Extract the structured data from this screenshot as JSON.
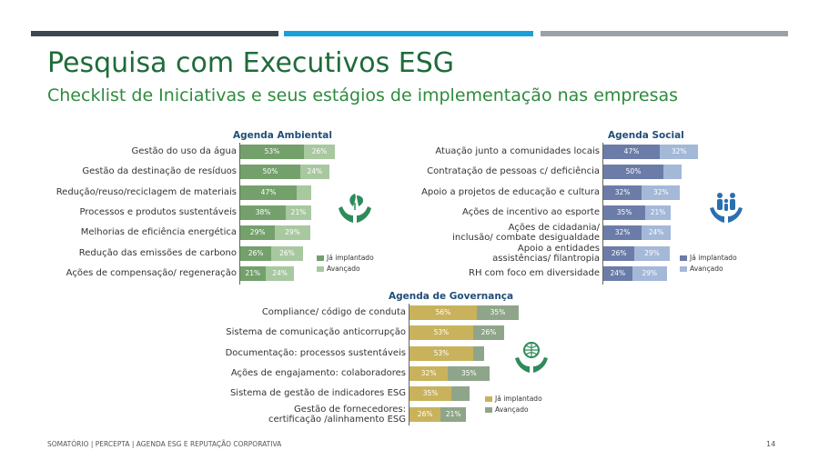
{
  "title": "Pesquisa com Executivos ESG",
  "subtitle": "Checklist de Iniciativas e seus estágios de implementação nas empresas",
  "footer": "SOMATÓRIO | PERCEPTA | AGENDA ESG E REPUTAÇÃO CORPORATIVA",
  "page_number": "14",
  "colors": {
    "bar1": "#3d4750",
    "bar2": "#1aa0d8",
    "bar3": "#9aa2a7",
    "env_impl": "#74a06c",
    "env_adv": "#a8c8a0",
    "soc_impl": "#6c7ca8",
    "soc_adv": "#a4b8d8",
    "gov_impl": "#c9b25c",
    "gov_adv": "#8fa58a",
    "icon_green": "#2e8b5a",
    "icon_blue": "#2a6fb0"
  },
  "icons": [
    "leaf-hands-icon",
    "family-hands-icon",
    "globe-hands-icon"
  ],
  "chart_data": [
    {
      "type": "bar",
      "title": "Agenda Ambiental",
      "categories": [
        "Gestão do uso da água",
        "Gestão da destinação de resíduos",
        "Redução/reuso/reciclagem de materiais",
        "Processos e produtos sustentáveis",
        "Melhorias de eficiência energética",
        "Redução das emissões de carbono",
        "Ações de compensação/ regeneração"
      ],
      "series": [
        {
          "name": "Já implantado",
          "values": [
            53,
            50,
            47,
            38,
            29,
            26,
            21
          ],
          "labels": [
            "53%",
            "50%",
            "47%",
            "38%",
            "29%",
            "26%",
            "21%"
          ]
        },
        {
          "name": "Avançado",
          "values": [
            26,
            24,
            12,
            21,
            29,
            26,
            24
          ],
          "labels": [
            "26%",
            "24%",
            "",
            "21%",
            "29%",
            "26%",
            "24%"
          ]
        }
      ],
      "stacked": true,
      "orientation": "horizontal",
      "legend": "right"
    },
    {
      "type": "bar",
      "title": "Agenda Social",
      "categories": [
        "Atuação junto a comunidades locais",
        "Contratação de pessoas c/ deficiência",
        "Apoio a projetos de educação e cultura",
        "Ações de incentivo ao esporte",
        "Ações de cidadania/ inclusão/ combate desigualdade",
        "Apoio a entidades assistências/ filantropia",
        "RH com foco em diversidade"
      ],
      "series": [
        {
          "name": "Já implantado",
          "values": [
            47,
            50,
            32,
            35,
            32,
            26,
            24
          ],
          "labels": [
            "47%",
            "50%",
            "32%",
            "35%",
            "32%",
            "26%",
            "24%"
          ]
        },
        {
          "name": "Avançado",
          "values": [
            32,
            15,
            32,
            21,
            24,
            29,
            29
          ],
          "labels": [
            "32%",
            "",
            "32%",
            "21%",
            "24%",
            "29%",
            "29%"
          ]
        }
      ],
      "stacked": true,
      "orientation": "horizontal",
      "legend": "right"
    },
    {
      "type": "bar",
      "title": "Agenda de Governança",
      "categories": [
        "Compliance/ código de conduta",
        "Sistema de comunicação anticorrupção",
        "Documentação: processos sustentáveis",
        "Ações de engajamento: colaboradores",
        "Sistema de gestão de indicadores ESG",
        "Gestão de fornecedores: certificação /alinhamento ESG"
      ],
      "series": [
        {
          "name": "Já implantado",
          "values": [
            56,
            53,
            53,
            32,
            35,
            26
          ],
          "labels": [
            "56%",
            "53%",
            "53%",
            "32%",
            "35%",
            "26%"
          ]
        },
        {
          "name": "Avançado",
          "values": [
            35,
            26,
            9,
            35,
            15,
            21
          ],
          "labels": [
            "35%",
            "26%",
            "",
            "35%",
            "",
            "21%"
          ]
        }
      ],
      "stacked": true,
      "orientation": "horizontal",
      "legend": "right"
    }
  ]
}
